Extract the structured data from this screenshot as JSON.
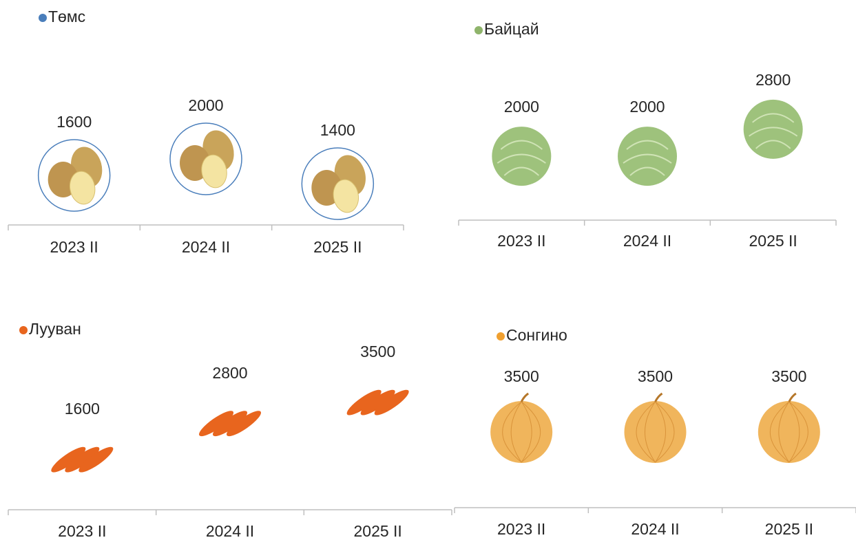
{
  "chart_data": [
    {
      "type": "pictograph",
      "marker": "potato",
      "categories": [
        "2023 II",
        "2024 II",
        "2025 II"
      ],
      "series": [
        {
          "name": "Төмс",
          "values": [
            1600,
            2000,
            1400
          ]
        }
      ]
    },
    {
      "type": "pictograph",
      "marker": "cabbage",
      "categories": [
        "2023 II",
        "2024 II",
        "2025 II"
      ],
      "series": [
        {
          "name": "Байцай",
          "values": [
            2000,
            2000,
            2800
          ]
        }
      ]
    },
    {
      "type": "pictograph",
      "marker": "carrot",
      "categories": [
        "2023 II",
        "2024 II",
        "2025 II"
      ],
      "series": [
        {
          "name": "Лууван",
          "values": [
            1600,
            2800,
            3500
          ]
        }
      ]
    },
    {
      "type": "pictograph",
      "marker": "onion",
      "categories": [
        "2023 II",
        "2024 II",
        "2025 II"
      ],
      "series": [
        {
          "name": "Сонгино",
          "values": [
            3500,
            3500,
            3500
          ]
        }
      ]
    }
  ]
}
